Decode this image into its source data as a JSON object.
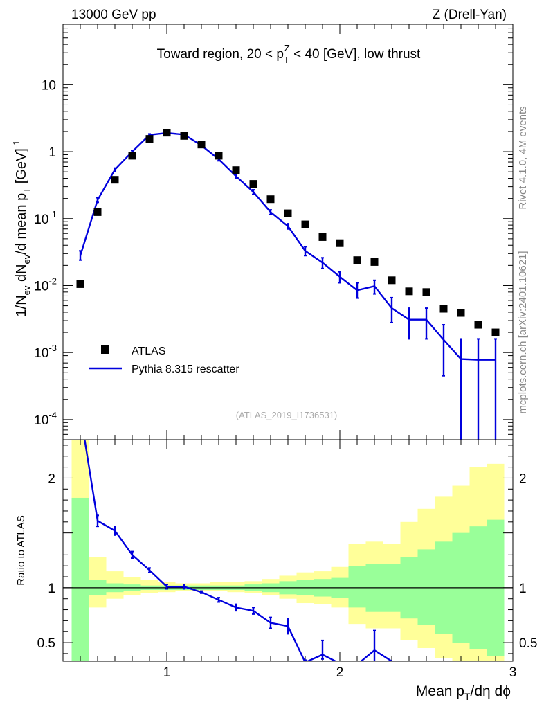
{
  "header": {
    "left": "13000 GeV pp",
    "right": "Z (Drell-Yan)"
  },
  "side_labels": {
    "rivet": "Rivet 4.1.0,  4M events",
    "mcplots": "mcplots.cern.ch [arXiv:2401.10621]"
  },
  "colors": {
    "mc": "#0000dd",
    "data": "#000000",
    "band_inner": "#99ff99",
    "band_outer": "#ffff99"
  },
  "chart_data": [
    {
      "type": "scatter",
      "panel": "main",
      "title": "Toward region, 20 < pT^Z < 40 [GeV], low thrust",
      "title_parts": {
        "prefix": "Toward region, 20 < p",
        "sub": "T",
        "sup": "Z",
        "suffix": " < 40 [GeV], low thrust"
      },
      "ylabel_parts": [
        "1/N",
        "ev",
        " dN",
        "ev",
        "/d mean p",
        "T",
        " [GeV]",
        "-1"
      ],
      "yscale": "log",
      "ylim": [
        5e-05,
        80
      ],
      "xlim": [
        0.4,
        3.0
      ],
      "y_ticks": [
        {
          "value": 10,
          "mant": "10",
          "exp": ""
        },
        {
          "value": 1,
          "mant": "1",
          "exp": ""
        },
        {
          "value": 0.1,
          "mant": "10",
          "exp": "-1"
        },
        {
          "value": 0.01,
          "mant": "10",
          "exp": "-2"
        },
        {
          "value": 0.001,
          "mant": "10",
          "exp": "-3"
        },
        {
          "value": 0.0001,
          "mant": "10",
          "exp": "-4"
        }
      ],
      "legend": {
        "position": "lower-left",
        "entries": [
          "ATLAS",
          "Pythia 8.315 rescatter"
        ]
      },
      "watermark": "(ATLAS_2019_I1736531)",
      "series": [
        {
          "name": "ATLAS",
          "style": "markers",
          "x": [
            0.5,
            0.6,
            0.7,
            0.8,
            0.9,
            1.0,
            1.1,
            1.2,
            1.3,
            1.4,
            1.5,
            1.6,
            1.7,
            1.8,
            1.9,
            2.0,
            2.1,
            2.2,
            2.3,
            2.4,
            2.5,
            2.6,
            2.7,
            2.8,
            2.9
          ],
          "y": [
            0.0105,
            0.125,
            0.38,
            0.87,
            1.55,
            1.92,
            1.72,
            1.28,
            0.87,
            0.53,
            0.33,
            0.195,
            0.12,
            0.082,
            0.053,
            0.043,
            0.024,
            0.0225,
            0.012,
            0.0082,
            0.008,
            0.0045,
            0.0039,
            0.0026,
            0.002
          ]
        },
        {
          "name": "Pythia 8.315 rescatter",
          "style": "line",
          "x": [
            0.5,
            0.6,
            0.7,
            0.8,
            0.9,
            1.0,
            1.1,
            1.2,
            1.3,
            1.4,
            1.5,
            1.6,
            1.7,
            1.8,
            1.9,
            2.0,
            2.1,
            2.2,
            2.3,
            2.4,
            2.5,
            2.6,
            2.7,
            2.8,
            2.9
          ],
          "y": [
            0.028,
            0.19,
            0.54,
            1.0,
            1.78,
            1.9,
            1.8,
            1.24,
            0.77,
            0.43,
            0.25,
            0.125,
            0.077,
            0.033,
            0.022,
            0.0135,
            0.0085,
            0.0098,
            0.0046,
            0.0031,
            0.0031,
            0.00155,
            0.0008,
            0.00078,
            0.00078
          ],
          "y_low": [
            0.024,
            0.175,
            0.51,
            0.96,
            1.72,
            1.86,
            1.76,
            1.2,
            0.73,
            0.4,
            0.23,
            0.115,
            0.07,
            0.028,
            0.018,
            0.011,
            0.0065,
            0.0075,
            0.0028,
            0.0016,
            0.0016,
            0.00045,
            4e-05,
            4e-05,
            4e-05
          ],
          "y_high": [
            0.033,
            0.205,
            0.57,
            1.04,
            1.84,
            1.94,
            1.84,
            1.28,
            0.81,
            0.46,
            0.27,
            0.135,
            0.084,
            0.038,
            0.026,
            0.016,
            0.011,
            0.012,
            0.0066,
            0.0046,
            0.0046,
            0.0026,
            0.0016,
            0.0016,
            0.0016
          ]
        }
      ]
    },
    {
      "type": "line",
      "panel": "ratio",
      "ylabel": "Ratio to ATLAS",
      "xlabel_parts": [
        "Mean p",
        "T",
        "/dη dϕ"
      ],
      "ylim": [
        0.33,
        2.35
      ],
      "xlim": [
        0.4,
        3.0
      ],
      "x_ticks": [
        1,
        2,
        3
      ],
      "y_ticks": [
        0.5,
        1,
        2
      ],
      "reference_line": 1,
      "bands": {
        "edges": [
          0.45,
          0.55,
          0.65,
          0.75,
          0.85,
          0.95,
          1.05,
          1.15,
          1.25,
          1.35,
          1.45,
          1.55,
          1.65,
          1.75,
          1.85,
          1.95,
          2.05,
          2.15,
          2.25,
          2.35,
          2.45,
          2.55,
          2.65,
          2.75,
          2.85,
          2.95
        ],
        "inner_low": [
          0.0,
          0.93,
          0.96,
          0.97,
          0.98,
          0.98,
          0.98,
          0.98,
          0.98,
          0.98,
          0.97,
          0.96,
          0.94,
          0.93,
          0.92,
          0.91,
          0.82,
          0.78,
          0.78,
          0.72,
          0.66,
          0.58,
          0.5,
          0.44,
          0.38
        ],
        "inner_high": [
          1.82,
          1.07,
          1.04,
          1.03,
          1.02,
          1.02,
          1.02,
          1.02,
          1.02,
          1.02,
          1.03,
          1.04,
          1.06,
          1.07,
          1.08,
          1.09,
          1.2,
          1.22,
          1.22,
          1.28,
          1.35,
          1.42,
          1.5,
          1.56,
          1.62
        ],
        "outer_low": [
          0.0,
          0.82,
          0.9,
          0.93,
          0.95,
          0.96,
          0.97,
          0.97,
          0.97,
          0.96,
          0.95,
          0.93,
          0.9,
          0.86,
          0.85,
          0.82,
          0.67,
          0.63,
          0.63,
          0.52,
          0.45,
          0.36,
          0.0,
          0.0,
          0.0
        ],
        "outer_high": [
          2.35,
          1.28,
          1.15,
          1.1,
          1.07,
          1.05,
          1.04,
          1.04,
          1.05,
          1.05,
          1.06,
          1.08,
          1.11,
          1.14,
          1.15,
          1.19,
          1.4,
          1.42,
          1.4,
          1.6,
          1.72,
          1.83,
          1.93,
          2.1,
          2.13
        ]
      },
      "series": [
        {
          "name": "Pythia 8.315 rescatter / ATLAS",
          "x": [
            0.5,
            0.6,
            0.7,
            0.8,
            0.9,
            1.0,
            1.1,
            1.2,
            1.3,
            1.4,
            1.5,
            1.6,
            1.7,
            1.8,
            1.9,
            2.0,
            2.1,
            2.2,
            2.3
          ],
          "y": [
            2.6,
            1.61,
            1.52,
            1.3,
            1.16,
            1.01,
            1.01,
            0.96,
            0.89,
            0.82,
            0.79,
            0.68,
            0.65,
            0.32,
            0.39,
            0.31,
            0.3,
            0.43,
            0.33
          ],
          "y_low": [
            2.6,
            1.56,
            1.48,
            1.27,
            1.14,
            0.99,
            0.99,
            0.95,
            0.87,
            0.79,
            0.76,
            0.63,
            0.58,
            0.3,
            0.35,
            0.3,
            0.3,
            0.33,
            0.33
          ],
          "y_high": [
            2.6,
            1.66,
            1.56,
            1.33,
            1.18,
            1.03,
            1.03,
            0.97,
            0.91,
            0.85,
            0.82,
            0.73,
            0.72,
            0.34,
            0.52,
            0.32,
            0.3,
            0.61,
            0.33
          ]
        }
      ]
    }
  ]
}
